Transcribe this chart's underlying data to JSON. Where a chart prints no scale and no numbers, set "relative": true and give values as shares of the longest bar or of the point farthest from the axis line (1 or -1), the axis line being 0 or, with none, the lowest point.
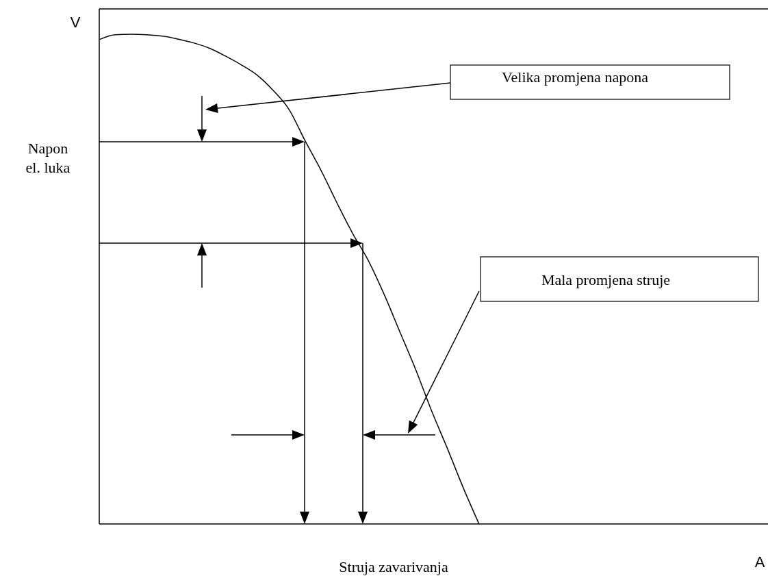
{
  "chart_data": {
    "type": "line",
    "relative": true,
    "xlabel": "Struja zavarivanja",
    "ylabel": "Napon el. luka",
    "annotations": [
      "Velika promjena napona",
      "Mala promjena struje",
      "V",
      "A"
    ],
    "categories": [
      null,
      null,
      null,
      null,
      null,
      null,
      null,
      null,
      null,
      null,
      null,
      null,
      null,
      null,
      null,
      null,
      null,
      null,
      null,
      null,
      null,
      null,
      null,
      null,
      null,
      null,
      null,
      null,
      null,
      null,
      null,
      null,
      null,
      null,
      null,
      null,
      null,
      null,
      null,
      null,
      null,
      null,
      null
    ],
    "series": [
      {
        "color": "#000000",
        "values": [
          0.989,
          0.999,
          1,
          0.999,
          0.996,
          0.99,
          0.982,
          0.971,
          0.955,
          0.937,
          0.916,
          0.885,
          0.846,
          0.783,
          0.723,
          0.657,
          0.594,
          0.538,
          0.469,
          0.392,
          0.315,
          0.231,
          0.154,
          0.074,
          0,
          null,
          null,
          null,
          null,
          null,
          null,
          null,
          null,
          null,
          null,
          null,
          null,
          null,
          null,
          null,
          null,
          null,
          null
        ]
      }
    ],
    "line_style": "solid"
  }
}
